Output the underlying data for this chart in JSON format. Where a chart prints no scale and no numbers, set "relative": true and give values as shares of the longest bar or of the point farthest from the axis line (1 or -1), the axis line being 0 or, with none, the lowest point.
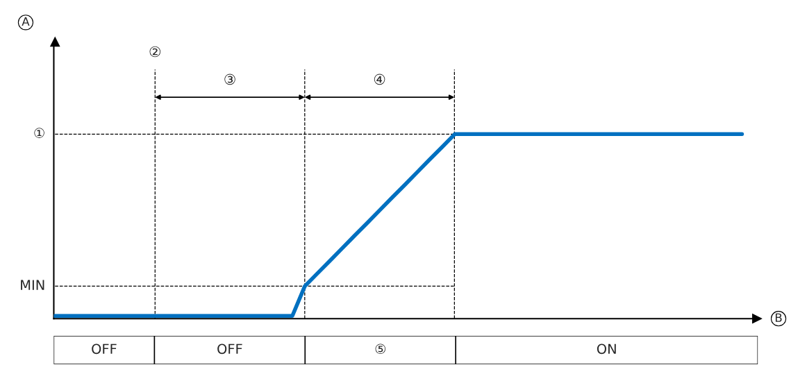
{
  "chart_data": {
    "type": "line",
    "relative": true,
    "xlabel": "B",
    "grid": "x",
    "categories": [
      null,
      null,
      null,
      null,
      null,
      null,
      null,
      null,
      null,
      null,
      null,
      null,
      null,
      null,
      null,
      null,
      null,
      null,
      null,
      null,
      null,
      null,
      null,
      null,
      null,
      null,
      null,
      null,
      null,
      null,
      null,
      null,
      null,
      null,
      null,
      null,
      null,
      null,
      null,
      null,
      null,
      null,
      null,
      null,
      null,
      null,
      null,
      null,
      null,
      null,
      null,
      null,
      null,
      null,
      null,
      null
    ],
    "series": [
      {
        "color": "#0070c0",
        "values": [
          0.015,
          0.015,
          0.015,
          0.015,
          0.015,
          0.015,
          0.015,
          0.015,
          0.015,
          0.015,
          0.015,
          0.015,
          0.015,
          0.015,
          0.015,
          0.015,
          0.015,
          0.015,
          0.015,
          0.015,
          0.176,
          0.245,
          0.313,
          0.382,
          0.451,
          0.519,
          0.588,
          0.657,
          0.725,
          0.794,
          0.863,
          0.931,
          1,
          1,
          1,
          1,
          1,
          1,
          1,
          1,
          1,
          1,
          1,
          1,
          1,
          1,
          1,
          1,
          1,
          1,
          1,
          1,
          1,
          1,
          1,
          1
        ]
      }
    ],
    "ref_lines": [
      {
        "axis": "y",
        "value": 1,
        "label": "①",
        "line_style": "dashed",
        "color": "#000000"
      },
      {
        "axis": "y",
        "value": 0.176,
        "label": "MIN",
        "line_style": "dashed",
        "color": "#000000"
      }
    ],
    "annotations": [
      "A",
      "②",
      "③",
      "④",
      "OFF",
      "OFF",
      "⑤",
      "ON"
    ]
  }
}
